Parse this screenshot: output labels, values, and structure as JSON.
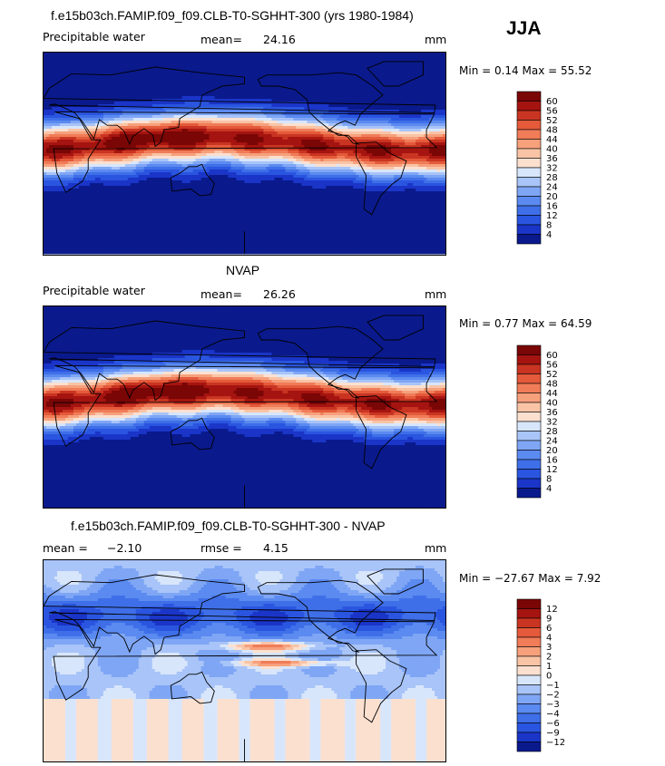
{
  "season": "JJA",
  "panels": [
    {
      "title": "f.e15b03ch.FAMIP.f09_f09.CLB-T0-SGHHT-300 (yrs 1980-1984)",
      "field_label": "Precipitable water",
      "stat1_label": "mean=",
      "stat1_value": "24.16",
      "stat2_label": "",
      "stat2_value": "",
      "units": "mm",
      "minmax": "Min =    0.14  Max =   55.52",
      "kind": "abs",
      "colorbar_labels": [
        "60",
        "56",
        "52",
        "48",
        "44",
        "40",
        "36",
        "32",
        "28",
        "24",
        "20",
        "16",
        "12",
        "8",
        "4"
      ]
    },
    {
      "title": "NVAP",
      "field_label": "Precipitable water",
      "stat1_label": "mean=",
      "stat1_value": "26.26",
      "stat2_label": "",
      "stat2_value": "",
      "units": "mm",
      "minmax": "Min =    0.77  Max =   64.59",
      "kind": "abs",
      "colorbar_labels": [
        "60",
        "56",
        "52",
        "48",
        "44",
        "40",
        "36",
        "32",
        "28",
        "24",
        "20",
        "16",
        "12",
        "8",
        "4"
      ]
    },
    {
      "title": "f.e15b03ch.FAMIP.f09_f09.CLB-T0-SGHHT-300 - NVAP",
      "field_label": "",
      "stat1_label": "mean =",
      "stat1_value": "−2.10",
      "stat2_label": "rmse =",
      "stat2_value": "4.15",
      "units": "mm",
      "minmax": "Min = −27.67  Max =    7.92",
      "kind": "diff",
      "colorbar_labels": [
        "12",
        "9",
        "6",
        "4",
        "3",
        "2",
        "1",
        "0",
        "−1",
        "−2",
        "−3",
        "−4",
        "−6",
        "−9",
        "−12"
      ]
    }
  ],
  "colors": {
    "abs_scale": [
      "#0a1a8c",
      "#1a35c8",
      "#2a55e0",
      "#3f6fe8",
      "#5b8af0",
      "#7fa6f5",
      "#a8c4f8",
      "#d8e6fb",
      "#fbe0d0",
      "#f9c4a6",
      "#f6a07c",
      "#f07c58",
      "#e45a3a",
      "#c93522",
      "#a51410",
      "#7a0606"
    ],
    "diff_scale": [
      "#0a1a8c",
      "#1a35c8",
      "#2a55e0",
      "#3f6fe8",
      "#5b8af0",
      "#7fa6f5",
      "#a8c4f8",
      "#d8e6fb",
      "#fbe0d0",
      "#f9c4a6",
      "#f6a07c",
      "#f07c58",
      "#e45a3a",
      "#c93522",
      "#a51410",
      "#7a0606"
    ]
  }
}
